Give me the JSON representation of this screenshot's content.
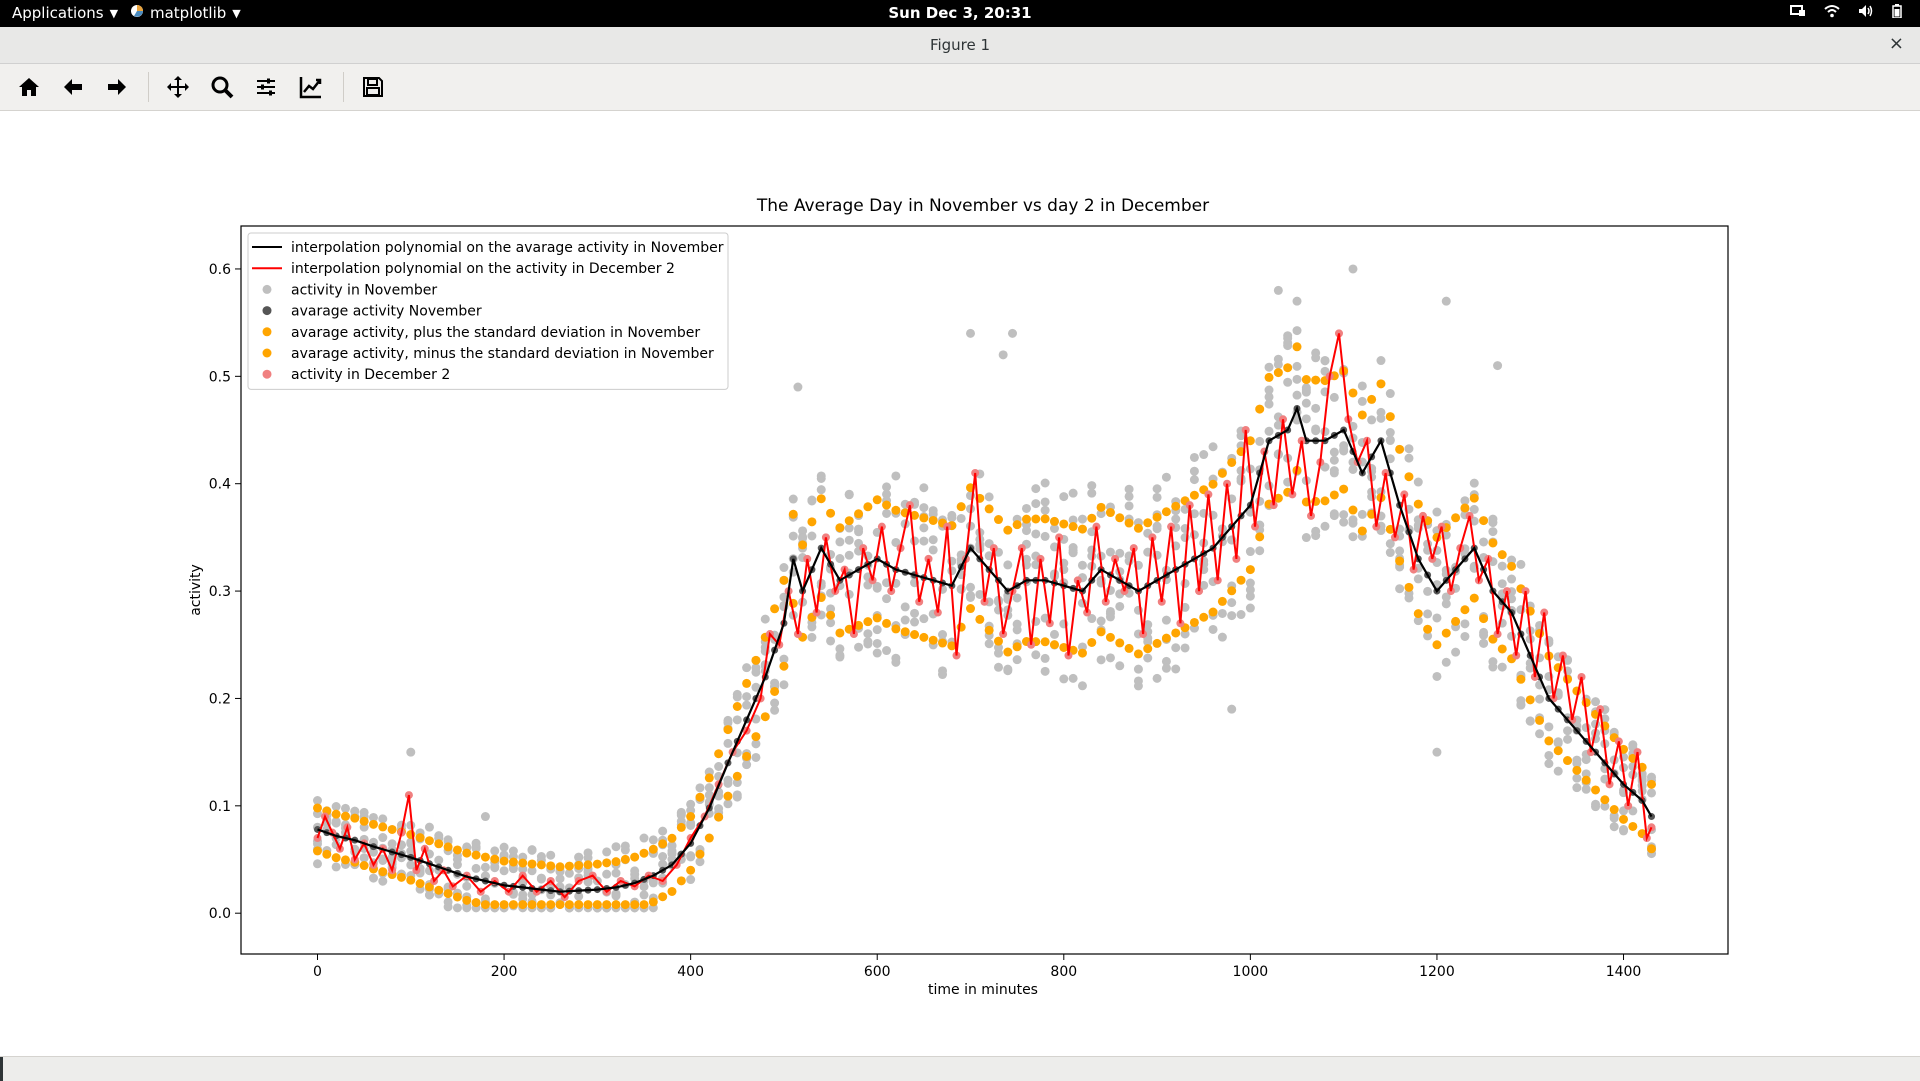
{
  "topbar": {
    "applications": "Applications",
    "app_menu": "matplotlib",
    "clock": "Sun Dec  3, 20:31"
  },
  "window": {
    "title": "Figure 1",
    "close": "×"
  },
  "toolbar": {
    "tools": [
      "home-icon",
      "back-icon",
      "forward-icon",
      "pan-icon",
      "zoom-icon",
      "configure-subplots-icon",
      "edit-axis-icon",
      "save-icon"
    ]
  },
  "colors": {
    "nov_scatter": "#bfbfbf",
    "nov_avg": "#555555",
    "std": "#ffa500",
    "dec_scatter": "#f08080",
    "nov_poly": "#000000",
    "dec_poly": "#ff0000"
  },
  "chart_data": {
    "type": "line",
    "title": "The Average Day in November vs day 2 in December",
    "xlabel": "time in minutes",
    "ylabel": "activity",
    "xlim": [
      -82,
      1512
    ],
    "ylim": [
      -0.038,
      0.64
    ],
    "xticks": [
      0,
      200,
      400,
      600,
      800,
      1000,
      1200,
      1400
    ],
    "yticks": [
      0.0,
      0.1,
      0.2,
      0.3,
      0.4,
      0.5,
      0.6
    ],
    "legend_position": "top-left",
    "legend": [
      {
        "label": "interpolation polynomial on the avarage activity in November",
        "kind": "line",
        "color": "#000000"
      },
      {
        "label": "interpolation polynomial on the activity in December 2",
        "kind": "line",
        "color": "#ff0000"
      },
      {
        "label": "activity in November",
        "kind": "marker",
        "color": "#bfbfbf"
      },
      {
        "label": "avarage activity November",
        "kind": "marker",
        "color": "#555555"
      },
      {
        "label": "avarage activity, plus the standard deviation in November",
        "kind": "marker",
        "color": "#ffa500"
      },
      {
        "label": "avarage activity, minus the standard deviation in November",
        "kind": "marker",
        "color": "#ffa500"
      },
      {
        "label": "activity in December 2",
        "kind": "marker",
        "color": "#f08080"
      }
    ],
    "series": [
      {
        "name": "interpolation polynomial on the avarage activity in November",
        "x": [
          0,
          20,
          40,
          60,
          80,
          100,
          120,
          140,
          160,
          180,
          200,
          220,
          240,
          260,
          280,
          300,
          320,
          340,
          360,
          380,
          400,
          420,
          440,
          460,
          480,
          500,
          510,
          520,
          540,
          560,
          580,
          600,
          620,
          640,
          660,
          680,
          700,
          720,
          740,
          760,
          780,
          800,
          820,
          840,
          860,
          880,
          900,
          920,
          940,
          960,
          980,
          1000,
          1020,
          1040,
          1050,
          1060,
          1080,
          1100,
          1120,
          1140,
          1160,
          1180,
          1200,
          1220,
          1240,
          1260,
          1280,
          1300,
          1320,
          1340,
          1360,
          1380,
          1400,
          1420,
          1430
        ],
        "y": [
          0.078,
          0.072,
          0.068,
          0.062,
          0.057,
          0.052,
          0.046,
          0.04,
          0.034,
          0.03,
          0.026,
          0.024,
          0.022,
          0.02,
          0.021,
          0.022,
          0.024,
          0.028,
          0.035,
          0.045,
          0.065,
          0.098,
          0.14,
          0.18,
          0.22,
          0.27,
          0.33,
          0.3,
          0.34,
          0.31,
          0.32,
          0.33,
          0.32,
          0.315,
          0.31,
          0.305,
          0.34,
          0.32,
          0.3,
          0.31,
          0.31,
          0.305,
          0.3,
          0.32,
          0.31,
          0.3,
          0.31,
          0.32,
          0.33,
          0.34,
          0.36,
          0.38,
          0.44,
          0.45,
          0.47,
          0.44,
          0.44,
          0.45,
          0.41,
          0.44,
          0.38,
          0.33,
          0.3,
          0.32,
          0.34,
          0.3,
          0.28,
          0.24,
          0.2,
          0.18,
          0.16,
          0.14,
          0.12,
          0.105,
          0.09
        ]
      },
      {
        "name": "interpolation polynomial on the activity in December 2",
        "x": [
          0,
          8,
          16,
          24,
          32,
          40,
          50,
          60,
          70,
          80,
          90,
          98,
          106,
          115,
          125,
          135,
          145,
          160,
          175,
          190,
          205,
          220,
          235,
          250,
          265,
          280,
          295,
          310,
          325,
          340,
          355,
          370,
          385,
          400,
          415,
          430,
          445,
          460,
          475,
          485,
          495,
          505,
          515,
          525,
          535,
          545,
          555,
          565,
          575,
          585,
          595,
          605,
          615,
          625,
          635,
          645,
          655,
          665,
          675,
          685,
          695,
          705,
          715,
          725,
          735,
          745,
          755,
          765,
          775,
          785,
          795,
          805,
          815,
          825,
          835,
          845,
          855,
          865,
          875,
          885,
          895,
          905,
          915,
          925,
          935,
          945,
          955,
          965,
          975,
          985,
          995,
          1005,
          1015,
          1025,
          1035,
          1045,
          1055,
          1065,
          1075,
          1085,
          1095,
          1105,
          1115,
          1125,
          1135,
          1145,
          1155,
          1165,
          1175,
          1185,
          1195,
          1205,
          1215,
          1225,
          1235,
          1245,
          1255,
          1265,
          1275,
          1285,
          1295,
          1305,
          1315,
          1325,
          1335,
          1345,
          1355,
          1365,
          1375,
          1385,
          1395,
          1405,
          1415,
          1425,
          1430
        ],
        "y": [
          0.07,
          0.09,
          0.075,
          0.06,
          0.08,
          0.05,
          0.065,
          0.045,
          0.06,
          0.04,
          0.075,
          0.11,
          0.04,
          0.06,
          0.03,
          0.04,
          0.025,
          0.035,
          0.02,
          0.03,
          0.02,
          0.035,
          0.02,
          0.03,
          0.015,
          0.03,
          0.035,
          0.02,
          0.03,
          0.025,
          0.035,
          0.03,
          0.045,
          0.07,
          0.09,
          0.12,
          0.15,
          0.17,
          0.2,
          0.26,
          0.25,
          0.3,
          0.26,
          0.33,
          0.28,
          0.35,
          0.3,
          0.32,
          0.26,
          0.34,
          0.31,
          0.36,
          0.3,
          0.34,
          0.38,
          0.29,
          0.33,
          0.28,
          0.36,
          0.24,
          0.33,
          0.41,
          0.29,
          0.34,
          0.26,
          0.3,
          0.34,
          0.25,
          0.33,
          0.27,
          0.35,
          0.24,
          0.31,
          0.28,
          0.36,
          0.29,
          0.33,
          0.3,
          0.34,
          0.26,
          0.35,
          0.29,
          0.36,
          0.27,
          0.38,
          0.3,
          0.39,
          0.31,
          0.4,
          0.33,
          0.45,
          0.36,
          0.43,
          0.38,
          0.46,
          0.39,
          0.44,
          0.37,
          0.42,
          0.5,
          0.54,
          0.46,
          0.42,
          0.44,
          0.36,
          0.41,
          0.35,
          0.39,
          0.32,
          0.37,
          0.33,
          0.36,
          0.3,
          0.34,
          0.37,
          0.31,
          0.33,
          0.26,
          0.3,
          0.24,
          0.3,
          0.22,
          0.28,
          0.2,
          0.24,
          0.18,
          0.22,
          0.15,
          0.19,
          0.12,
          0.16,
          0.1,
          0.15,
          0.07,
          0.08
        ],
        "markers": true
      },
      {
        "name": "avarage activity November",
        "markers_only": true,
        "sample_every_minutes": 10,
        "follows": "interpolation polynomial on the avarage activity in November"
      },
      {
        "name": "avarage activity, plus the standard deviation in November",
        "markers_only": true,
        "approx_offset_above_average": [
          [
            0,
            0.02
          ],
          [
            400,
            0.025
          ],
          [
            600,
            0.055
          ],
          [
            1000,
            0.06
          ],
          [
            1200,
            0.05
          ],
          [
            1430,
            0.03
          ]
        ]
      },
      {
        "name": "avarage activity, minus the standard deviation in November",
        "markers_only": true,
        "approx_offset_below_average": [
          [
            0,
            0.02
          ],
          [
            400,
            0.025
          ],
          [
            600,
            0.055
          ],
          [
            1000,
            0.06
          ],
          [
            1200,
            0.05
          ],
          [
            1430,
            0.03
          ]
        ]
      },
      {
        "name": "activity in November",
        "markers_only": true,
        "note_points": "dense grey cloud spread around the average, widest in 500-1300 minutes",
        "outliers": [
          [
            100,
            0.15
          ],
          [
            180,
            0.09
          ],
          [
            515,
            0.49
          ],
          [
            700,
            0.54
          ],
          [
            735,
            0.52
          ],
          [
            745,
            0.54
          ],
          [
            1030,
            0.58
          ],
          [
            1050,
            0.57
          ],
          [
            1110,
            0.6
          ],
          [
            1210,
            0.57
          ],
          [
            1265,
            0.51
          ],
          [
            1200,
            0.15
          ],
          [
            980,
            0.19
          ]
        ]
      }
    ]
  }
}
